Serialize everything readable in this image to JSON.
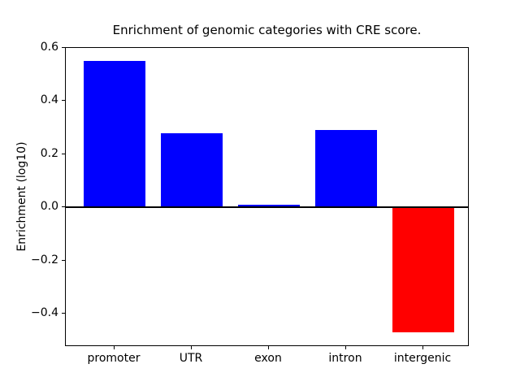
{
  "chart_data": {
    "type": "bar",
    "title": "Enrichment of genomic categories with CRE score.",
    "xlabel": "",
    "ylabel": "Enrichment (log10)",
    "categories": [
      "promoter",
      "UTR",
      "exon",
      "intron",
      "intergenic"
    ],
    "values": [
      0.55,
      0.28,
      0.01,
      0.29,
      -0.47
    ],
    "bar_colors": [
      "#0000ff",
      "#0000ff",
      "#0000ff",
      "#0000ff",
      "#ff0000"
    ],
    "positive_color": "#0000ff",
    "negative_color": "#ff0000",
    "ylim": [
      -0.525,
      0.6
    ],
    "yticks": [
      0.6,
      0.4,
      0.2,
      0.0,
      -0.2,
      -0.4
    ],
    "ytick_labels": [
      "0.6",
      "0.4",
      "0.2",
      "0.0",
      "−0.2",
      "−0.4"
    ],
    "grid": false,
    "legend": null,
    "zero_line": true,
    "background_color": "#ffffff",
    "axis_color": "#000000"
  }
}
